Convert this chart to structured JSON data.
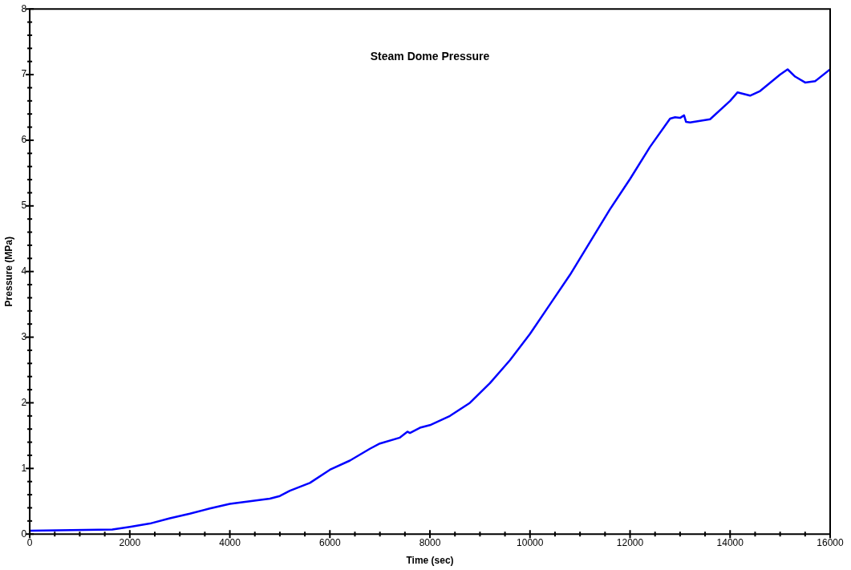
{
  "chart_data": {
    "type": "line",
    "title": "Steam Dome Pressure",
    "xlabel": "Time (sec)",
    "ylabel": "Pressure (MPa)",
    "x": [
      0,
      1650,
      2000,
      2400,
      2800,
      3200,
      3600,
      4000,
      4400,
      4800,
      5000,
      5200,
      5600,
      6000,
      6400,
      6800,
      7000,
      7400,
      7550,
      7600,
      7800,
      8000,
      8400,
      8800,
      9200,
      9600,
      10000,
      10400,
      10800,
      11200,
      11600,
      12000,
      12400,
      12800,
      12900,
      13000,
      13080,
      13120,
      13200,
      13600,
      14000,
      14150,
      14400,
      14600,
      15000,
      15150,
      15300,
      15500,
      15700,
      16000
    ],
    "series": [
      {
        "color": "#0000ff",
        "values": [
          0.05,
          0.07,
          0.11,
          0.16,
          0.24,
          0.31,
          0.39,
          0.46,
          0.5,
          0.54,
          0.58,
          0.66,
          0.78,
          0.98,
          1.12,
          1.3,
          1.38,
          1.47,
          1.56,
          1.54,
          1.62,
          1.66,
          1.8,
          2.0,
          2.3,
          2.65,
          3.05,
          3.5,
          3.95,
          4.45,
          4.95,
          5.41,
          5.9,
          6.33,
          6.35,
          6.34,
          6.38,
          6.28,
          6.27,
          6.32,
          6.6,
          6.73,
          6.68,
          6.75,
          7.0,
          7.08,
          6.97,
          6.88,
          6.9,
          7.08
        ]
      }
    ],
    "xlim": [
      0,
      16000
    ],
    "xticks": [
      0,
      {
        "value": 500,
        "label": null
      },
      {
        "value": 1000,
        "label": null
      },
      {
        "value": 1500,
        "label": null
      },
      2000,
      {
        "value": 2500,
        "label": null
      },
      {
        "value": 3000,
        "label": null
      },
      {
        "value": 3500,
        "label": null
      },
      4000,
      {
        "value": 4500,
        "label": null
      },
      {
        "value": 5000,
        "label": null
      },
      {
        "value": 5500,
        "label": null
      },
      6000,
      {
        "value": 6500,
        "label": null
      },
      {
        "value": 7000,
        "label": null
      },
      {
        "value": 7500,
        "label": null
      },
      8000,
      {
        "value": 8500,
        "label": null
      },
      {
        "value": 9000,
        "label": null
      },
      {
        "value": 9500,
        "label": null
      },
      10000,
      {
        "value": 10500,
        "label": null
      },
      {
        "value": 11000,
        "label": null
      },
      {
        "value": 11500,
        "label": null
      },
      12000,
      {
        "value": 12500,
        "label": null
      },
      {
        "value": 13000,
        "label": null
      },
      {
        "value": 13500,
        "label": null
      },
      14000,
      {
        "value": 14500,
        "label": null
      },
      {
        "value": 15000,
        "label": null
      },
      {
        "value": 15500,
        "label": null
      },
      16000
    ],
    "ylim": [
      0,
      8
    ],
    "yticks": [
      0,
      {
        "value": 0.2,
        "label": null
      },
      {
        "value": 0.4,
        "label": null
      },
      {
        "value": 0.6,
        "label": null
      },
      {
        "value": 0.8,
        "label": null
      },
      1,
      {
        "value": 1.2,
        "label": null
      },
      {
        "value": 1.4,
        "label": null
      },
      {
        "value": 1.6,
        "label": null
      },
      {
        "value": 1.8,
        "label": null
      },
      2,
      {
        "value": 2.2,
        "label": null
      },
      {
        "value": 2.4,
        "label": null
      },
      {
        "value": 2.6,
        "label": null
      },
      {
        "value": 2.8,
        "label": null
      },
      3,
      {
        "value": 3.2,
        "label": null
      },
      {
        "value": 3.4,
        "label": null
      },
      {
        "value": 3.6,
        "label": null
      },
      {
        "value": 3.8,
        "label": null
      },
      4,
      {
        "value": 4.2,
        "label": null
      },
      {
        "value": 4.4,
        "label": null
      },
      {
        "value": 4.6,
        "label": null
      },
      {
        "value": 4.8,
        "label": null
      },
      5,
      {
        "value": 5.2,
        "label": null
      },
      {
        "value": 5.4,
        "label": null
      },
      {
        "value": 5.6,
        "label": null
      },
      {
        "value": 5.8,
        "label": null
      },
      6,
      {
        "value": 6.2,
        "label": null
      },
      {
        "value": 6.4,
        "label": null
      },
      {
        "value": 6.6,
        "label": null
      },
      {
        "value": 6.8,
        "label": null
      },
      7,
      {
        "value": 7.2,
        "label": null
      },
      {
        "value": 7.4,
        "label": null
      },
      {
        "value": 7.6,
        "label": null
      },
      {
        "value": 7.8,
        "label": null
      },
      8
    ],
    "grid": false,
    "legend": false,
    "marker": "none",
    "line_style": "solid"
  }
}
